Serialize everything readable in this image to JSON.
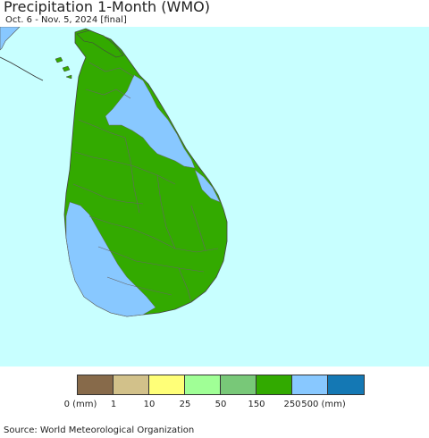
{
  "title": "Precipitation 1-Month (WMO)",
  "subtitle": "Oct. 6 - Nov. 5, 2024 [final]",
  "source": "Source: World Meteorological Organization",
  "colors": {
    "ocean": "#c8ffff",
    "land_green": "#33aa00",
    "land_blue": "#88c8ff",
    "border": "#555555"
  },
  "legend": {
    "colors": [
      "#876a4a",
      "#d2c18a",
      "#ffff78",
      "#a0ff96",
      "#78c878",
      "#32aa00",
      "#88c8ff",
      "#1478b4"
    ],
    "labels": [
      "0 (mm)",
      "1",
      "10",
      "25",
      "50",
      "150",
      "250",
      "500 (mm)"
    ]
  }
}
